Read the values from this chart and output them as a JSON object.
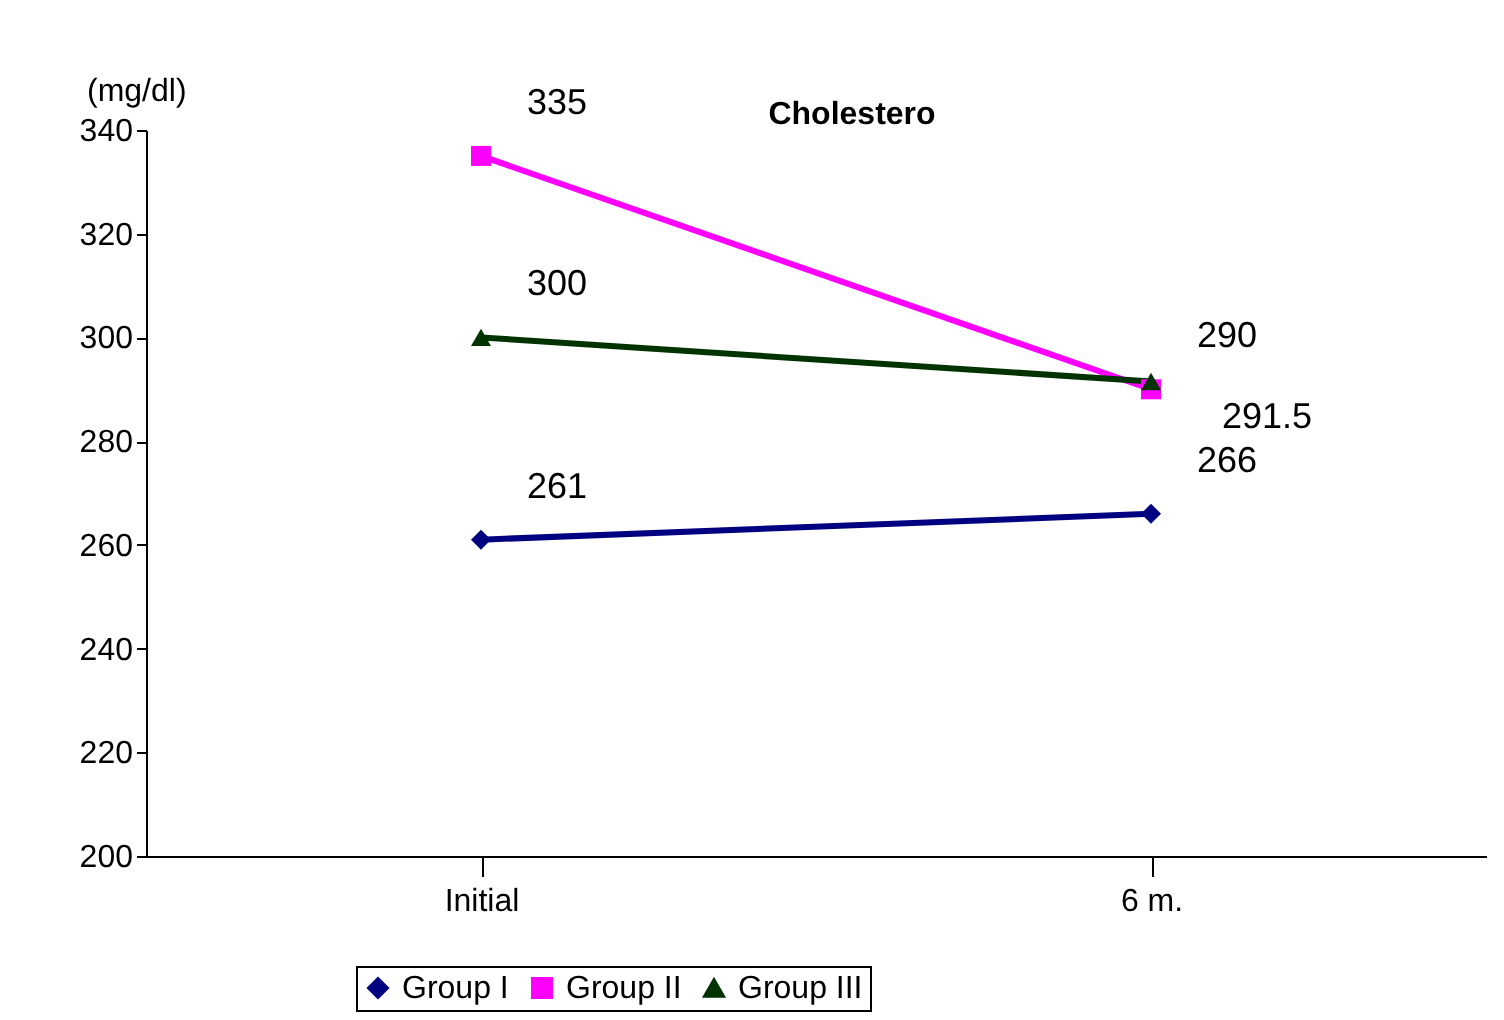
{
  "chart_data": {
    "type": "line",
    "title": "Cholestero",
    "ylabel": "(mg/dl)",
    "categories": [
      "Initial",
      "6 m."
    ],
    "series": [
      {
        "name": "Group I",
        "color": "#000080",
        "marker": "diamond",
        "values": [
          261,
          266
        ]
      },
      {
        "name": "Group II",
        "color": "#ff00ff",
        "marker": "square",
        "values": [
          335,
          290
        ]
      },
      {
        "name": "Group III",
        "color": "#003300",
        "marker": "triangle",
        "values": [
          300,
          291.5
        ]
      }
    ],
    "ylim": [
      200,
      340
    ],
    "yticks": [
      200,
      220,
      240,
      260,
      280,
      300,
      320,
      340
    ],
    "grid": false,
    "legend": "bottom",
    "data_labels": true,
    "line_style": "solid"
  }
}
